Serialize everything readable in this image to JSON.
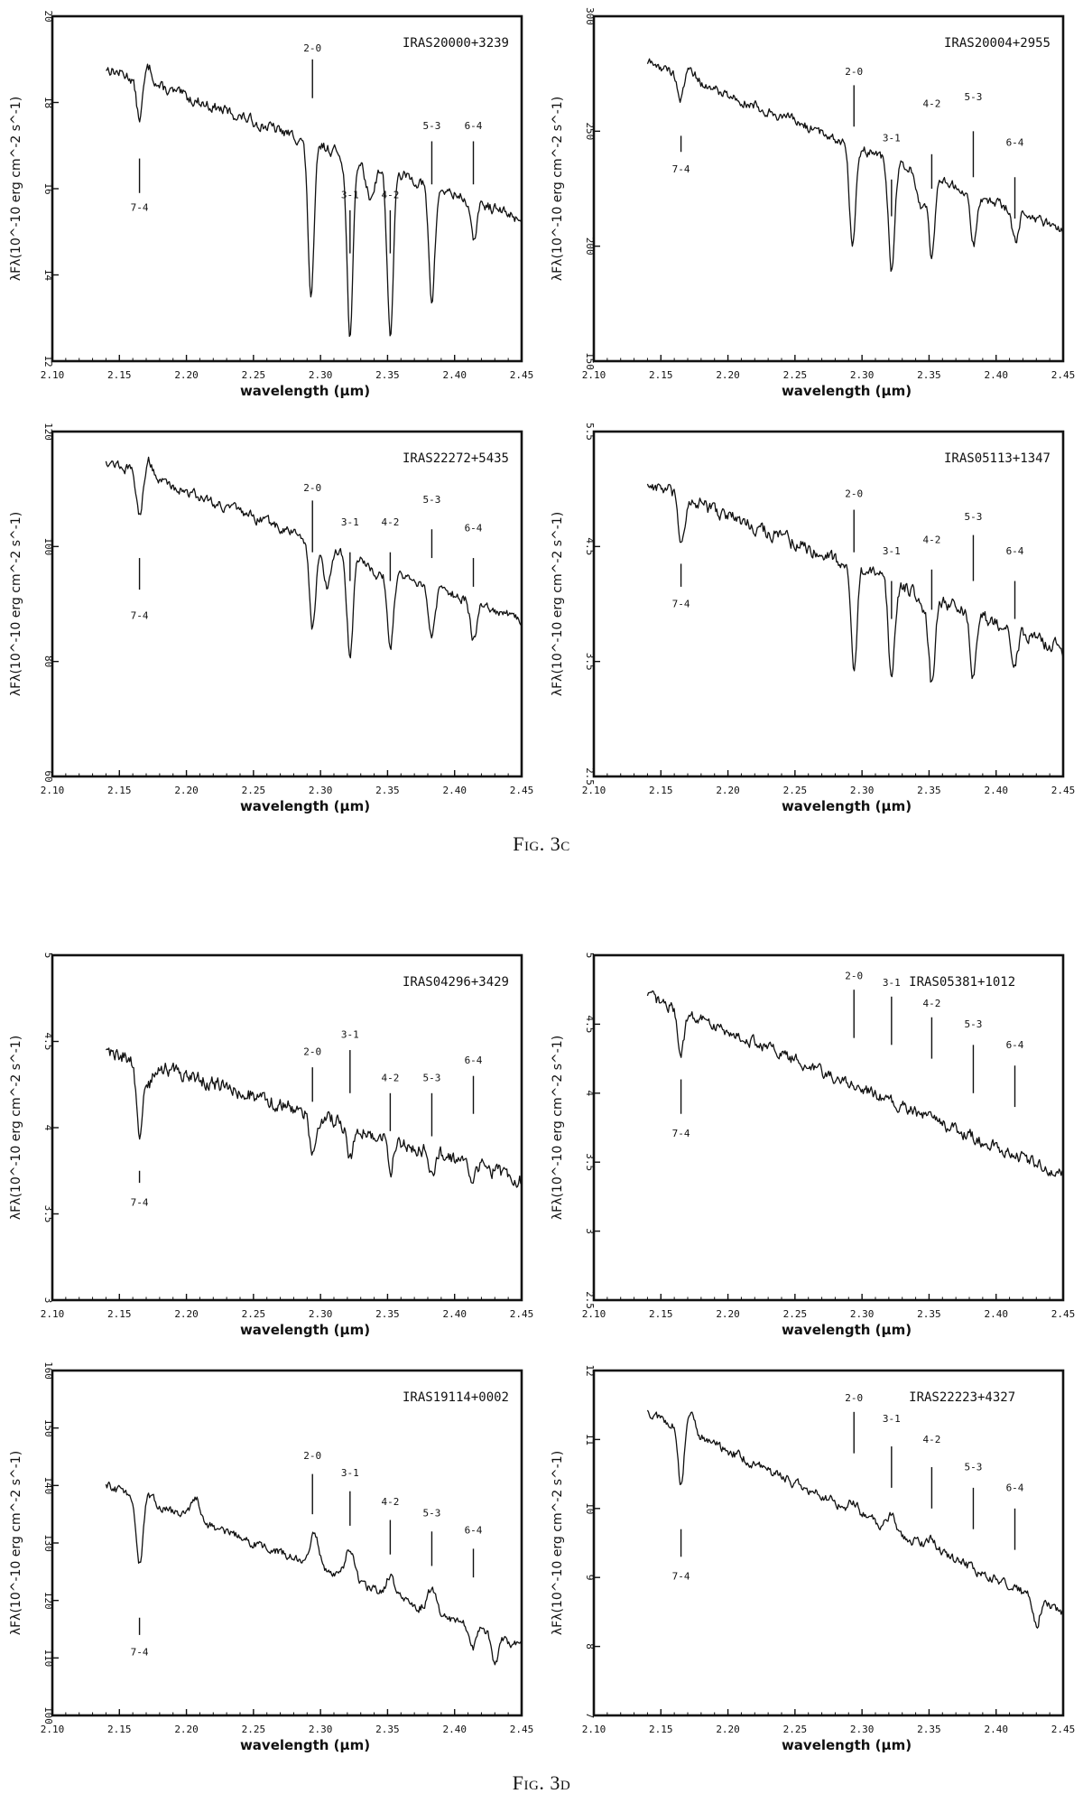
{
  "figures": [
    {
      "caption": "Fig. 3c"
    },
    {
      "caption": "Fig. 3d"
    }
  ],
  "chart_data": [
    {
      "type": "line",
      "title": "IRAS20000+3239",
      "xlabel": "wavelength (μm)",
      "ylabel": "λFλ(10^-10 erg cm^-2 s^-1)",
      "xlim": [
        2.1,
        2.45
      ],
      "ylim": [
        12,
        20
      ],
      "xticks": [
        "2.10",
        "2.15",
        "2.20",
        "2.25",
        "2.30",
        "2.35",
        "2.40",
        "2.45"
      ],
      "yticks": [
        "12",
        "14",
        "16",
        "18",
        "20"
      ],
      "start": 18.8,
      "end": 15.3,
      "dips": [
        [
          2.165,
          17.6
        ],
        [
          2.293,
          13.5
        ],
        [
          2.322,
          12.6
        ],
        [
          2.352,
          12.6
        ],
        [
          2.383,
          13.4
        ],
        [
          2.414,
          14.8
        ]
      ],
      "humps": [
        [
          2.172,
          18.8
        ],
        [
          2.337,
          15.8
        ]
      ],
      "noise": 0.15,
      "bands": [
        {
          "label": "7-4",
          "x": 2.165,
          "tick": [
            15.9,
            16.7
          ],
          "label_y": 15.7,
          "pos": "below"
        },
        {
          "label": "2-0",
          "x": 2.294,
          "tick": [
            18.1,
            19.0
          ],
          "label_y": 19.1,
          "pos": "above"
        },
        {
          "label": "3-1",
          "x": 2.322,
          "tick": [
            14.5,
            15.5
          ],
          "label_y": 15.7,
          "pos": "above"
        },
        {
          "label": "4-2",
          "x": 2.352,
          "tick": [
            14.5,
            15.5
          ],
          "label_y": 15.7,
          "pos": "above"
        },
        {
          "label": "5-3",
          "x": 2.383,
          "tick": [
            16.1,
            17.1
          ],
          "label_y": 17.3,
          "pos": "above"
        },
        {
          "label": "6-4",
          "x": 2.414,
          "tick": [
            16.1,
            17.1
          ],
          "label_y": 17.3,
          "pos": "above"
        }
      ]
    },
    {
      "type": "line",
      "title": "IRAS20004+2955",
      "xlabel": "wavelength (μm)",
      "ylabel": "λFλ(10^-10 erg cm^-2 s^-1)",
      "xlim": [
        2.1,
        2.45
      ],
      "ylim": [
        150,
        300
      ],
      "xticks": [
        "2.10",
        "2.15",
        "2.20",
        "2.25",
        "2.30",
        "2.35",
        "2.40",
        "2.45"
      ],
      "yticks": [
        "150",
        "200",
        "250",
        "300"
      ],
      "start": 280,
      "end": 207,
      "dips": [
        [
          2.165,
          263
        ],
        [
          2.293,
          200
        ],
        [
          2.322,
          188
        ],
        [
          2.352,
          196
        ],
        [
          2.383,
          200
        ],
        [
          2.414,
          201
        ]
      ],
      "humps": [
        [
          2.172,
          278
        ],
        [
          2.344,
          218
        ]
      ],
      "noise": 2.5,
      "bands": [
        {
          "label": "7-4",
          "x": 2.165,
          "tick": [
            241,
            248
          ],
          "label_y": 236,
          "pos": "below"
        },
        {
          "label": "2-0",
          "x": 2.294,
          "tick": [
            252,
            270
          ],
          "label_y": 273,
          "pos": "above"
        },
        {
          "label": "3-1",
          "x": 2.322,
          "tick": [
            213,
            229
          ],
          "label_y": 244,
          "pos": "above"
        },
        {
          "label": "4-2",
          "x": 2.352,
          "tick": [
            225,
            240
          ],
          "label_y": 259,
          "pos": "above"
        },
        {
          "label": "5-3",
          "x": 2.383,
          "tick": [
            230,
            250
          ],
          "label_y": 262,
          "pos": "above"
        },
        {
          "label": "6-4",
          "x": 2.414,
          "tick": [
            212,
            230
          ],
          "label_y": 242,
          "pos": "above"
        }
      ]
    },
    {
      "type": "line",
      "title": "IRAS22272+5435",
      "xlabel": "wavelength (μm)",
      "ylabel": "λFλ(10^-10 erg cm^-2 s^-1)",
      "xlim": [
        2.1,
        2.45
      ],
      "ylim": [
        60,
        120
      ],
      "xticks": [
        "2.10",
        "2.15",
        "2.20",
        "2.25",
        "2.30",
        "2.35",
        "2.40",
        "2.45"
      ],
      "yticks": [
        "60",
        "80",
        "100",
        "120"
      ],
      "start": 115,
      "end": 87,
      "dips": [
        [
          2.165,
          105
        ],
        [
          2.294,
          86
        ],
        [
          2.322,
          81
        ],
        [
          2.352,
          82
        ],
        [
          2.383,
          84
        ],
        [
          2.414,
          84
        ]
      ],
      "humps": [
        [
          2.172,
          115
        ],
        [
          2.305,
          93
        ],
        [
          2.342,
          95
        ]
      ],
      "noise": 1.0,
      "bands": [
        {
          "label": "7-4",
          "x": 2.165,
          "tick": [
            92.5,
            98
          ],
          "label_y": 89,
          "pos": "below"
        },
        {
          "label": "2-0",
          "x": 2.294,
          "tick": [
            99,
            108
          ],
          "label_y": 109,
          "pos": "above"
        },
        {
          "label": "3-1",
          "x": 2.322,
          "tick": [
            94,
            99
          ],
          "label_y": 103,
          "pos": "above"
        },
        {
          "label": "4-2",
          "x": 2.352,
          "tick": [
            94,
            99
          ],
          "label_y": 103,
          "pos": "above"
        },
        {
          "label": "5-3",
          "x": 2.383,
          "tick": [
            98,
            103
          ],
          "label_y": 107,
          "pos": "above"
        },
        {
          "label": "6-4",
          "x": 2.414,
          "tick": [
            93,
            98
          ],
          "label_y": 102,
          "pos": "above"
        }
      ]
    },
    {
      "type": "line",
      "title": "IRAS05113+1347",
      "xlabel": "wavelength (μm)",
      "ylabel": "λFλ(10^-10 erg cm^-2 s^-1)",
      "xlim": [
        2.1,
        2.45
      ],
      "ylim": [
        2.5,
        5.5
      ],
      "xticks": [
        "2.10",
        "2.15",
        "2.20",
        "2.25",
        "2.30",
        "2.35",
        "2.40",
        "2.45"
      ],
      "yticks": [
        "2.5",
        "3.5",
        "4.5",
        "5.5"
      ],
      "start": 5.05,
      "end": 3.6,
      "dips": [
        [
          2.165,
          4.55
        ],
        [
          2.294,
          3.45
        ],
        [
          2.322,
          3.35
        ],
        [
          2.352,
          3.3
        ],
        [
          2.383,
          3.35
        ],
        [
          2.414,
          3.5
        ]
      ],
      "humps": [
        [
          2.172,
          4.85
        ],
        [
          2.345,
          3.95
        ]
      ],
      "noise": 0.07,
      "bands": [
        {
          "label": "7-4",
          "x": 2.165,
          "tick": [
            4.15,
            4.35
          ],
          "label_y": 4.05,
          "pos": "below"
        },
        {
          "label": "2-0",
          "x": 2.294,
          "tick": [
            4.45,
            4.82
          ],
          "label_y": 4.9,
          "pos": "above"
        },
        {
          "label": "3-1",
          "x": 2.322,
          "tick": [
            3.87,
            4.2
          ],
          "label_y": 4.4,
          "pos": "above"
        },
        {
          "label": "4-2",
          "x": 2.352,
          "tick": [
            3.95,
            4.3
          ],
          "label_y": 4.5,
          "pos": "above"
        },
        {
          "label": "5-3",
          "x": 2.383,
          "tick": [
            4.2,
            4.6
          ],
          "label_y": 4.7,
          "pos": "above"
        },
        {
          "label": "6-4",
          "x": 2.414,
          "tick": [
            3.87,
            4.2
          ],
          "label_y": 4.4,
          "pos": "above"
        }
      ]
    },
    {
      "type": "line",
      "title": "IRAS04296+3429",
      "xlabel": "wavelength (μm)",
      "ylabel": "λFλ(10^-10 erg cm^-2 s^-1)",
      "xlim": [
        2.1,
        2.45
      ],
      "ylim": [
        3,
        5
      ],
      "xticks": [
        "2.10",
        "2.15",
        "2.20",
        "2.25",
        "2.30",
        "2.35",
        "2.40",
        "2.45"
      ],
      "yticks": [
        "3",
        "3.5",
        "4",
        "4.5",
        "5"
      ],
      "start": 4.45,
      "end": 3.7,
      "dips": [
        [
          2.165,
          3.95
        ],
        [
          2.294,
          3.85
        ],
        [
          2.322,
          3.82
        ],
        [
          2.352,
          3.75
        ],
        [
          2.383,
          3.75
        ],
        [
          2.414,
          3.7
        ]
      ],
      "humps": [
        [
          2.172,
          4.25
        ]
      ],
      "noise": 0.05,
      "bands": [
        {
          "label": "7-4",
          "x": 2.165,
          "tick": [
            3.68,
            3.75
          ],
          "label_y": 3.6,
          "pos": "below"
        },
        {
          "label": "2-0",
          "x": 2.294,
          "tick": [
            4.15,
            4.35
          ],
          "label_y": 4.4,
          "pos": "above"
        },
        {
          "label": "3-1",
          "x": 2.322,
          "tick": [
            4.2,
            4.45
          ],
          "label_y": 4.5,
          "pos": "above"
        },
        {
          "label": "4-2",
          "x": 2.352,
          "tick": [
            3.98,
            4.2
          ],
          "label_y": 4.25,
          "pos": "above"
        },
        {
          "label": "5-3",
          "x": 2.383,
          "tick": [
            3.95,
            4.2
          ],
          "label_y": 4.25,
          "pos": "above"
        },
        {
          "label": "6-4",
          "x": 2.414,
          "tick": [
            4.08,
            4.3
          ],
          "label_y": 4.35,
          "pos": "above"
        }
      ]
    },
    {
      "type": "line",
      "title": "IRAS05381+1012",
      "xlabel": "wavelength (μm)",
      "ylabel": "λFλ(10^-10 erg cm^-2 s^-1)",
      "xlim": [
        2.1,
        2.45
      ],
      "ylim": [
        2.5,
        5
      ],
      "xticks": [
        "2.10",
        "2.15",
        "2.20",
        "2.25",
        "2.30",
        "2.35",
        "2.40",
        "2.45"
      ],
      "yticks": [
        "2.5",
        "3",
        "3.5",
        "4",
        "4.5",
        "5"
      ],
      "start": 4.7,
      "end": 3.4,
      "dips": [
        [
          2.165,
          4.3
        ]
      ],
      "humps": [],
      "noise": 0.05,
      "bands": [
        {
          "label": "7-4",
          "x": 2.165,
          "tick": [
            3.85,
            4.1
          ],
          "label_y": 3.75,
          "pos": "below"
        },
        {
          "label": "2-0",
          "x": 2.294,
          "tick": [
            4.4,
            4.75
          ],
          "label_y": 4.8,
          "pos": "above"
        },
        {
          "label": "3-1",
          "x": 2.322,
          "tick": [
            4.35,
            4.7
          ],
          "label_y": 4.75,
          "pos": "above"
        },
        {
          "label": "4-2",
          "x": 2.352,
          "tick": [
            4.25,
            4.55
          ],
          "label_y": 4.6,
          "pos": "above"
        },
        {
          "label": "5-3",
          "x": 2.383,
          "tick": [
            4.0,
            4.35
          ],
          "label_y": 4.45,
          "pos": "above"
        },
        {
          "label": "6-4",
          "x": 2.414,
          "tick": [
            3.9,
            4.2
          ],
          "label_y": 4.3,
          "pos": "above"
        }
      ],
      "title_x": 2.335
    },
    {
      "type": "line",
      "title": "IRAS19114+0002",
      "xlabel": "wavelength (μm)",
      "ylabel": "λFλ(10^-10 erg cm^-2 s^-1)",
      "xlim": [
        2.1,
        2.45
      ],
      "ylim": [
        100,
        160
      ],
      "xticks": [
        "2.10",
        "2.15",
        "2.20",
        "2.25",
        "2.30",
        "2.35",
        "2.40",
        "2.45"
      ],
      "yticks": [
        "100",
        "110",
        "120",
        "130",
        "140",
        "150",
        "160"
      ],
      "start": 140,
      "end": 112,
      "dips": [
        [
          2.165,
          126
        ],
        [
          2.414,
          112
        ],
        [
          2.43,
          109
        ]
      ],
      "humps": [
        [
          2.172,
          138
        ],
        [
          2.207,
          138
        ],
        [
          2.295,
          132
        ],
        [
          2.322,
          129
        ],
        [
          2.352,
          124
        ],
        [
          2.383,
          122
        ]
      ],
      "noise": 0.9,
      "bands": [
        {
          "label": "7-4",
          "x": 2.165,
          "tick": [
            114,
            117
          ],
          "label_y": 112,
          "pos": "below"
        },
        {
          "label": "2-0",
          "x": 2.294,
          "tick": [
            135,
            142
          ],
          "label_y": 144,
          "pos": "above"
        },
        {
          "label": "3-1",
          "x": 2.322,
          "tick": [
            133,
            139
          ],
          "label_y": 141,
          "pos": "above"
        },
        {
          "label": "4-2",
          "x": 2.352,
          "tick": [
            128,
            134
          ],
          "label_y": 136,
          "pos": "above"
        },
        {
          "label": "5-3",
          "x": 2.383,
          "tick": [
            126,
            132
          ],
          "label_y": 134,
          "pos": "above"
        },
        {
          "label": "6-4",
          "x": 2.414,
          "tick": [
            124,
            129
          ],
          "label_y": 131,
          "pos": "above"
        }
      ]
    },
    {
      "type": "line",
      "title": "IRAS22223+4327",
      "xlabel": "wavelength (μm)",
      "ylabel": "λFλ(10^-10 erg cm^-2 s^-1)",
      "xlim": [
        2.1,
        2.45
      ],
      "ylim": [
        7,
        12
      ],
      "xticks": [
        "2.10",
        "2.15",
        "2.20",
        "2.25",
        "2.30",
        "2.35",
        "2.40",
        "2.45"
      ],
      "yticks": [
        "7",
        "8",
        "9",
        "10",
        "11",
        "12"
      ],
      "start": 11.4,
      "end": 8.5,
      "dips": [
        [
          2.165,
          10.3
        ],
        [
          2.43,
          8.3
        ]
      ],
      "humps": [
        [
          2.172,
          11.4
        ],
        [
          2.294,
          10.1
        ],
        [
          2.322,
          9.9
        ],
        [
          2.352,
          9.6
        ]
      ],
      "noise": 0.08,
      "bands": [
        {
          "label": "7-4",
          "x": 2.165,
          "tick": [
            9.3,
            9.7
          ],
          "label_y": 9.1,
          "pos": "below"
        },
        {
          "label": "2-0",
          "x": 2.294,
          "tick": [
            10.8,
            11.4
          ],
          "label_y": 11.5,
          "pos": "above"
        },
        {
          "label": "3-1",
          "x": 2.322,
          "tick": [
            10.3,
            10.9
          ],
          "label_y": 11.2,
          "pos": "above"
        },
        {
          "label": "4-2",
          "x": 2.352,
          "tick": [
            10.0,
            10.6
          ],
          "label_y": 10.9,
          "pos": "above"
        },
        {
          "label": "5-3",
          "x": 2.383,
          "tick": [
            9.7,
            10.3
          ],
          "label_y": 10.5,
          "pos": "above"
        },
        {
          "label": "6-4",
          "x": 2.414,
          "tick": [
            9.4,
            10.0
          ],
          "label_y": 10.2,
          "pos": "above"
        }
      ],
      "title_x": 2.335
    }
  ]
}
